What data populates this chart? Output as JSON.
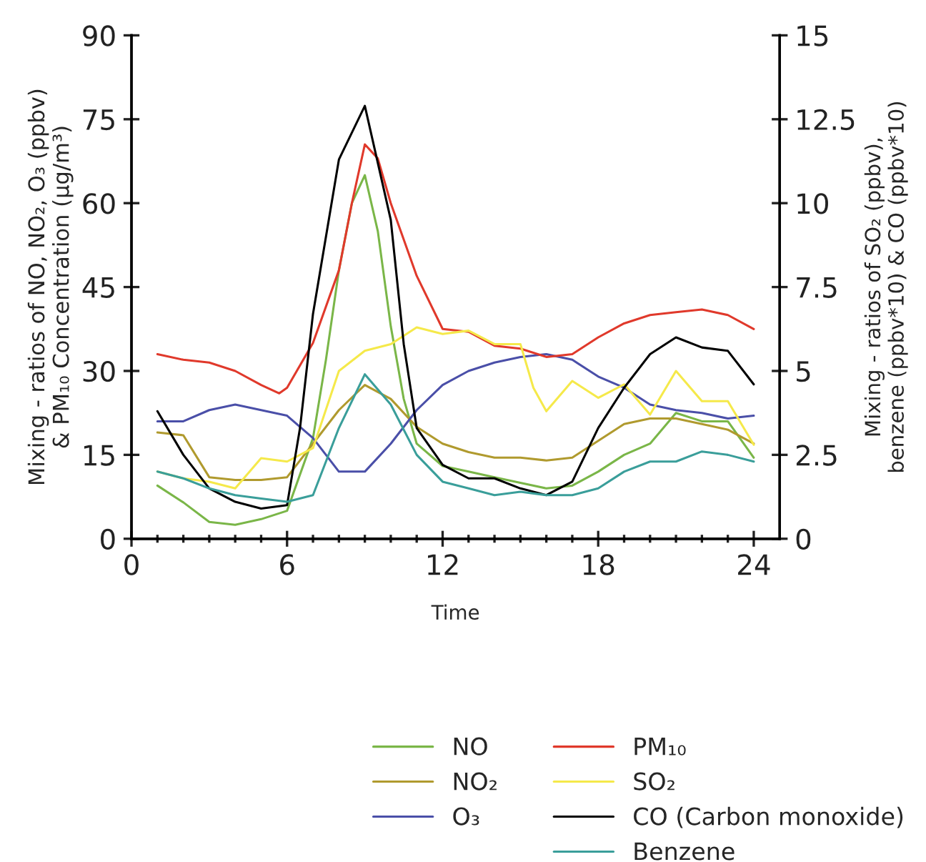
{
  "chart_data": {
    "type": "line",
    "xlabel": "Time",
    "ylabel": "Mixing - ratios of NO, NO₂, O₃ (ppbv)\n& PM₁₀ Concentration (µg/m³)",
    "y2label": "Mixing - ratios of SO₂ (ppbv),\nbenzene (ppbv*10) & CO (ppbv*10)",
    "xlim": [
      0,
      25
    ],
    "xticks": [
      0,
      {
        "value": 1,
        "label": null
      },
      {
        "value": 2,
        "label": null
      },
      {
        "value": 3,
        "label": null
      },
      {
        "value": 4,
        "label": null
      },
      {
        "value": 5,
        "label": null
      },
      6,
      {
        "value": 7,
        "label": null
      },
      {
        "value": 8,
        "label": null
      },
      {
        "value": 9,
        "label": null
      },
      {
        "value": 10,
        "label": null
      },
      {
        "value": 11,
        "label": null
      },
      12,
      {
        "value": 13,
        "label": null
      },
      {
        "value": 14,
        "label": null
      },
      {
        "value": 15,
        "label": null
      },
      {
        "value": 16,
        "label": null
      },
      {
        "value": 17,
        "label": null
      },
      18,
      {
        "value": 19,
        "label": null
      },
      {
        "value": 20,
        "label": null
      },
      {
        "value": 21,
        "label": null
      },
      {
        "value": 22,
        "label": null
      },
      {
        "value": 23,
        "label": null
      },
      24
    ],
    "ylim": [
      0,
      90
    ],
    "yticks": [
      0,
      15,
      30,
      45,
      60,
      75,
      90
    ],
    "y2lim": [
      0,
      15
    ],
    "y2ticks": [
      0,
      2.5,
      5,
      7.5,
      10,
      12.5,
      15
    ],
    "grid": false,
    "legend": "bottom",
    "marker": "none",
    "line_style": "solid",
    "series": [
      {
        "name": "NO",
        "color": "#7ab648",
        "x": [
          1,
          2,
          3,
          4,
          5,
          6,
          7,
          7.5,
          8,
          8.5,
          9,
          9.5,
          10,
          10.5,
          11,
          12,
          13,
          14,
          15,
          16,
          17,
          18,
          19,
          20,
          21,
          22,
          23,
          24
        ],
        "values": [
          9.5,
          6.5,
          3,
          2.5,
          3.5,
          5,
          18,
          32,
          48,
          60,
          65,
          55,
          38,
          25,
          17,
          13,
          12,
          11,
          10,
          9,
          9.5,
          12,
          15,
          17,
          22.5,
          21,
          21,
          14.5
        ]
      },
      {
        "name": "NO₂",
        "color": "#b09a2e",
        "x": [
          1,
          2,
          3,
          4,
          5,
          6,
          7,
          8,
          9,
          10,
          11,
          12,
          13,
          14,
          15,
          16,
          17,
          18,
          19,
          20,
          21,
          22,
          23,
          24
        ],
        "values": [
          19,
          18.5,
          11,
          10.5,
          10.5,
          11,
          17,
          23,
          27.5,
          25,
          20,
          17,
          15.5,
          14.5,
          14.5,
          14,
          14.5,
          17.5,
          20.5,
          21.5,
          21.5,
          20.5,
          19.5,
          17
        ]
      },
      {
        "name": "O₃",
        "color": "#4a4fa8",
        "x": [
          1,
          2,
          3,
          4,
          5,
          6,
          7,
          8,
          9,
          10,
          11,
          12,
          13,
          14,
          15,
          16,
          17,
          18,
          19,
          20,
          21,
          22,
          23,
          24
        ],
        "values": [
          21,
          21,
          23,
          24,
          23,
          22,
          18,
          12,
          12,
          17,
          23,
          27.5,
          30,
          31.5,
          32.5,
          33,
          32,
          29,
          27,
          24,
          23,
          22.5,
          21.5,
          22
        ]
      },
      {
        "name": "PM₁₀",
        "color": "#e0392b",
        "x": [
          1,
          2,
          3,
          4,
          5,
          5.7,
          6,
          7,
          8,
          8.5,
          9,
          9.5,
          10,
          11,
          12,
          13,
          14,
          15,
          16,
          17,
          18,
          19,
          20,
          21,
          22,
          23,
          24
        ],
        "values": [
          33,
          32,
          31.5,
          30,
          27.5,
          26,
          27,
          35,
          48,
          60,
          70.5,
          68,
          60,
          47,
          37.5,
          37,
          34.5,
          34,
          32.5,
          33,
          36,
          38.5,
          40,
          40.5,
          41,
          40,
          37.5
        ]
      },
      {
        "name": "SO₂",
        "color": "#f5e94a",
        "axis": "y2",
        "x": [
          1,
          2,
          3,
          4,
          5,
          6,
          7,
          8,
          9,
          10,
          11,
          12,
          13,
          14,
          15,
          15.5,
          16,
          17,
          18,
          19,
          20,
          21,
          22,
          23,
          24
        ],
        "values": [
          2.0,
          1.8,
          1.7,
          1.5,
          2.4,
          2.3,
          2.7,
          5.0,
          5.6,
          5.8,
          6.3,
          6.1,
          6.2,
          5.8,
          5.8,
          4.5,
          3.8,
          4.7,
          4.2,
          4.6,
          3.7,
          5.0,
          4.1,
          4.1,
          2.8
        ]
      },
      {
        "name": "CO (Carbon monoxide)",
        "color": "#000000",
        "axis": "y2",
        "x": [
          1,
          2,
          3,
          4,
          5,
          6,
          6.5,
          7,
          8,
          9,
          10,
          10.5,
          11,
          12,
          13,
          14,
          15,
          16,
          17,
          18,
          19,
          20,
          21,
          22,
          23,
          24
        ],
        "values": [
          3.8,
          2.5,
          1.5,
          1.1,
          0.9,
          1.0,
          3.3,
          6.7,
          11.3,
          12.9,
          9.5,
          5.8,
          3.3,
          2.2,
          1.8,
          1.8,
          1.5,
          1.3,
          1.7,
          3.3,
          4.5,
          5.5,
          6.0,
          5.7,
          5.6,
          4.6
        ]
      },
      {
        "name": "Benzene",
        "color": "#3a9e9a",
        "axis": "y2",
        "x": [
          1,
          2,
          3,
          4,
          5,
          6,
          7,
          8,
          9,
          10,
          11,
          12,
          13,
          14,
          15,
          16,
          17,
          18,
          19,
          20,
          21,
          22,
          23,
          24
        ],
        "values": [
          2.0,
          1.8,
          1.5,
          1.3,
          1.2,
          1.1,
          1.3,
          3.3,
          4.9,
          4.0,
          2.5,
          1.7,
          1.5,
          1.3,
          1.4,
          1.3,
          1.3,
          1.5,
          2.0,
          2.3,
          2.3,
          2.6,
          2.5,
          2.3
        ]
      }
    ]
  }
}
